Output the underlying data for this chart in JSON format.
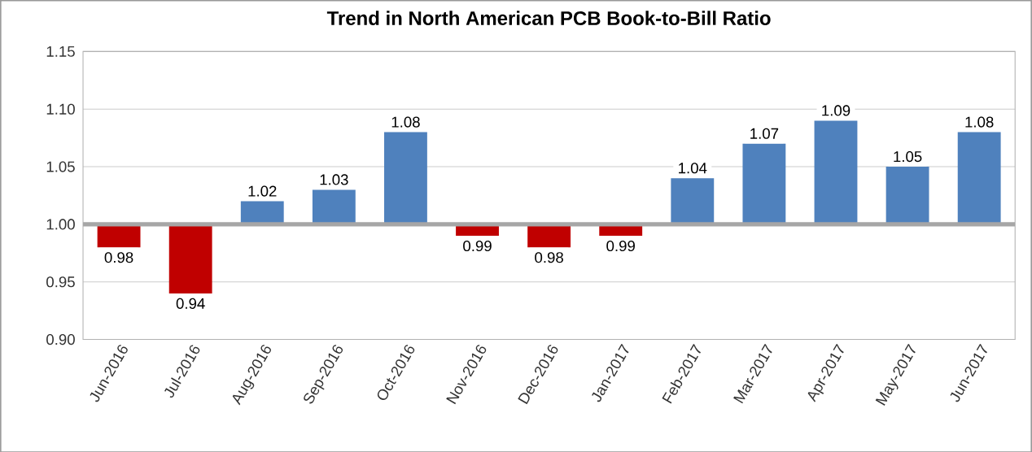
{
  "chart_data": {
    "type": "bar",
    "title": "Trend in North American PCB Book-to-Bill Ratio",
    "categories": [
      "Jun-2016",
      "Jul-2016",
      "Aug-2016",
      "Sep-2016",
      "Oct-2016",
      "Nov-2016",
      "Dec-2016",
      "Jan-2017",
      "Feb-2017",
      "Mar-2017",
      "Apr-2017",
      "May-2017",
      "Jun-2017"
    ],
    "base": [
      1.0,
      1.0,
      1.0,
      1.0,
      1.0,
      1.0,
      1.0,
      1.0,
      1.0,
      1.0,
      1.0,
      1.0,
      1.0
    ],
    "values": [
      -0.02,
      -0.06,
      0.02,
      0.03,
      0.08,
      -0.01,
      -0.02,
      -0.01,
      0.04,
      0.07,
      0.09,
      0.05,
      0.08
    ],
    "value_labels": [
      "0.98",
      "0.94",
      "1.02",
      "1.03",
      "1.08",
      "0.99",
      "0.98",
      "0.99",
      "1.04",
      "1.07",
      "1.09",
      "1.05",
      "1.08"
    ],
    "colors": [
      "#c00000",
      "#c00000",
      "#4f81bd",
      "#4f81bd",
      "#4f81bd",
      "#c00000",
      "#c00000",
      "#c00000",
      "#4f81bd",
      "#4f81bd",
      "#4f81bd",
      "#4f81bd",
      "#4f81bd"
    ],
    "ylim": [
      0.9,
      1.15
    ],
    "yticks": [
      {
        "value": 0.9,
        "label": "0.90"
      },
      {
        "value": 0.95,
        "label": "0.95"
      },
      {
        "value": 1.0,
        "label": "1.00"
      },
      {
        "value": 1.05,
        "label": "1.05"
      },
      {
        "value": 1.1,
        "label": "1.10"
      },
      {
        "value": 1.15,
        "label": "1.15"
      }
    ],
    "ref_lines": [
      {
        "axis": "y",
        "value": 1.0,
        "color": "#a6a6a6"
      }
    ],
    "grid": "y"
  }
}
